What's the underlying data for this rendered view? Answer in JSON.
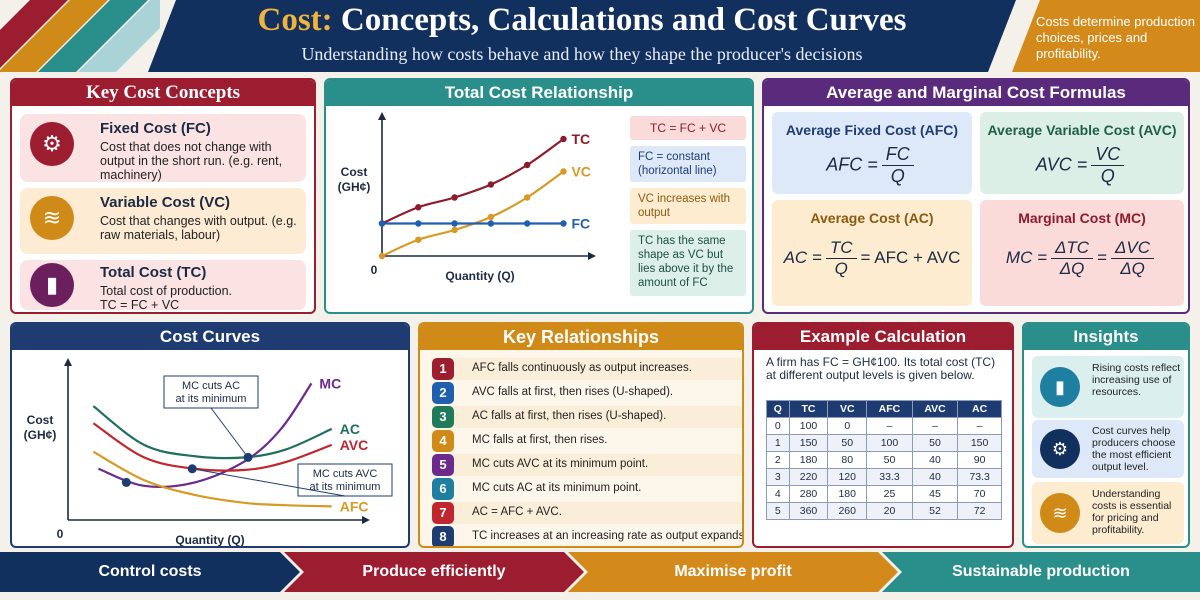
{
  "header": {
    "title_accent": "Cost:",
    "title_rest": "Concepts, Calculations and Cost Curves",
    "subtitle": "Understanding how costs behave and how they shape the producer's decisions",
    "note": "Costs determine production choices, prices and profitability.",
    "colors": {
      "navy": "#12305e",
      "gold": "#f0b33c",
      "orange": "#d38a1b"
    }
  },
  "key_concepts": {
    "title": "Key Cost Concepts",
    "items": [
      {
        "name": "Fixed Cost (FC)",
        "desc": "Cost that does not change with output in the short run. (e.g. rent, machinery)",
        "icon": "gear-icon",
        "color": "#9c1c30",
        "bg": "#fbe3e3"
      },
      {
        "name": "Variable Cost (VC)",
        "desc": "Cost that changes with output. (e.g. raw materials, labour)",
        "icon": "coins-icon",
        "color": "#d08a17",
        "bg": "#fdebd3"
      },
      {
        "name": "Total Cost (TC)",
        "desc": "Total cost of production. TC = FC + VC",
        "icon": "bar-chart-icon",
        "color": "#6b1f5c",
        "bg": "#fbe3e3"
      }
    ]
  },
  "total_cost": {
    "title": "Total Cost Relationship",
    "notes": [
      {
        "text": "TC = FC + VC",
        "bg": "#fbdada"
      },
      {
        "text": "FC = constant (horizontal line)",
        "bg": "#dde9f8"
      },
      {
        "text": "VC increases with output",
        "bg": "#fdecd0"
      },
      {
        "text": "TC has the same shape as VC but lies above it by the amount of FC",
        "bg": "#dcefe9"
      }
    ]
  },
  "formulas": {
    "title": "Average and Marginal Cost Formulas",
    "afc": {
      "name": "Average Fixed Cost (AFC)",
      "lhs": "AFC =",
      "num": "FC",
      "den": "Q"
    },
    "avc": {
      "name": "Average Variable Cost (AVC)",
      "lhs": "AVC =",
      "num": "VC",
      "den": "Q"
    },
    "ac": {
      "name": "Average Cost (AC)",
      "lhs": "AC =",
      "num": "TC",
      "den": "Q",
      "rhs": "= AFC + AVC"
    },
    "mc": {
      "name": "Marginal Cost (MC)",
      "lhs": "MC =",
      "num": "ΔTC",
      "den": "ΔQ",
      "eq": "=",
      "num2": "ΔVC",
      "den2": "ΔQ"
    }
  },
  "cost_curves": {
    "title": "Cost Curves"
  },
  "relationships": {
    "title": "Key Relationships",
    "items": [
      {
        "num": "1",
        "text": "AFC falls continuously as output increases.",
        "color": "#9c1c30"
      },
      {
        "num": "2",
        "text": "AVC falls at first, then rises (U-shaped).",
        "color": "#1f5fb0"
      },
      {
        "num": "3",
        "text": "AC falls at first, then rises (U-shaped).",
        "color": "#1f7a5a"
      },
      {
        "num": "4",
        "text": "MC falls at first, then rises.",
        "color": "#d08a17"
      },
      {
        "num": "5",
        "text": "MC cuts AVC at its minimum point.",
        "color": "#6b2a8c"
      },
      {
        "num": "6",
        "text": "MC cuts AC at its minimum point.",
        "color": "#1f7fa0"
      },
      {
        "num": "7",
        "text": "AC = AFC + AVC.",
        "color": "#c0262d"
      },
      {
        "num": "8",
        "text": "TC increases at an increasing rate as output expands.",
        "color": "#1f3c72"
      }
    ]
  },
  "example": {
    "title": "Example Calculation",
    "intro": "A firm has FC = GH¢100. Its total cost (TC) at different output levels is given below.",
    "headers": [
      "Q",
      "TC",
      "VC",
      "AFC",
      "AVC",
      "AC"
    ],
    "rows": [
      [
        "0",
        "100",
        "0",
        "–",
        "–",
        "–"
      ],
      [
        "1",
        "150",
        "50",
        "100",
        "50",
        "150"
      ],
      [
        "2",
        "180",
        "80",
        "50",
        "40",
        "90"
      ],
      [
        "3",
        "220",
        "120",
        "33.3",
        "40",
        "73.3"
      ],
      [
        "4",
        "280",
        "180",
        "25",
        "45",
        "70"
      ],
      [
        "5",
        "360",
        "260",
        "20",
        "52",
        "72"
      ]
    ]
  },
  "insights": {
    "title": "Insights",
    "items": [
      {
        "text": "Rising costs reflect increasing use of resources.",
        "icon": "chart-icon",
        "color": "#1f7fa0"
      },
      {
        "text": "Cost curves help producers choose the most efficient output level.",
        "icon": "gear-icon",
        "color": "#12305e"
      },
      {
        "text": "Understanding costs is essential for pricing and profitability.",
        "icon": "coins-icon",
        "color": "#d08a17"
      }
    ]
  },
  "footer": [
    "Control costs",
    "Produce efficiently",
    "Maximise profit",
    "Sustainable production"
  ],
  "chart_data": [
    {
      "type": "line",
      "title": "Total Cost Relationship",
      "xlabel": "Quantity (Q)",
      "ylabel": "Cost (GH¢)",
      "origin_label": "0",
      "series": [
        {
          "name": "TC",
          "color": "#8e1b2c",
          "x": [
            0,
            1,
            2,
            3,
            4,
            5
          ],
          "y": [
            100,
            150,
            180,
            220,
            280,
            360
          ]
        },
        {
          "name": "VC",
          "color": "#d79a25",
          "x": [
            0,
            1,
            2,
            3,
            4,
            5
          ],
          "y": [
            0,
            50,
            80,
            120,
            180,
            260
          ]
        },
        {
          "name": "FC",
          "color": "#1f5fb0",
          "x": [
            0,
            1,
            2,
            3,
            4,
            5
          ],
          "y": [
            100,
            100,
            100,
            100,
            100,
            100
          ]
        }
      ],
      "xlim": [
        0,
        5.4
      ],
      "ylim": [
        0,
        400
      ]
    },
    {
      "type": "line",
      "title": "Cost Curves",
      "xlabel": "Quantity (Q)",
      "ylabel": "Cost (GH¢)",
      "origin_label": "0",
      "series": [
        {
          "name": "MC",
          "color": "#6b2a8c",
          "x": [
            0.6,
            1.5,
            2.5,
            3.5,
            4.2,
            4.8
          ],
          "y": [
            45,
            30,
            33,
            52,
            80,
            120
          ]
        },
        {
          "name": "AC",
          "color": "#1f6f5f",
          "x": [
            0.5,
            1.5,
            2.5,
            3.5,
            4.3,
            5.2
          ],
          "y": [
            100,
            66,
            56,
            55,
            62,
            80
          ]
        },
        {
          "name": "AVC",
          "color": "#c0262d",
          "x": [
            0.5,
            1.5,
            2.5,
            3.5,
            4.3,
            5.2
          ],
          "y": [
            85,
            55,
            45,
            44,
            51,
            66
          ]
        },
        {
          "name": "AFC",
          "color": "#d79a25",
          "x": [
            0.5,
            1.5,
            2.5,
            3.5,
            4.3,
            5.2
          ],
          "y": [
            60,
            35,
            22,
            15,
            13,
            12
          ]
        }
      ],
      "annotations": [
        "MC cuts AC at its minimum",
        "MC cuts AVC at its minimum"
      ],
      "xlim": [
        0,
        5.6
      ],
      "ylim": [
        0,
        130
      ]
    }
  ]
}
